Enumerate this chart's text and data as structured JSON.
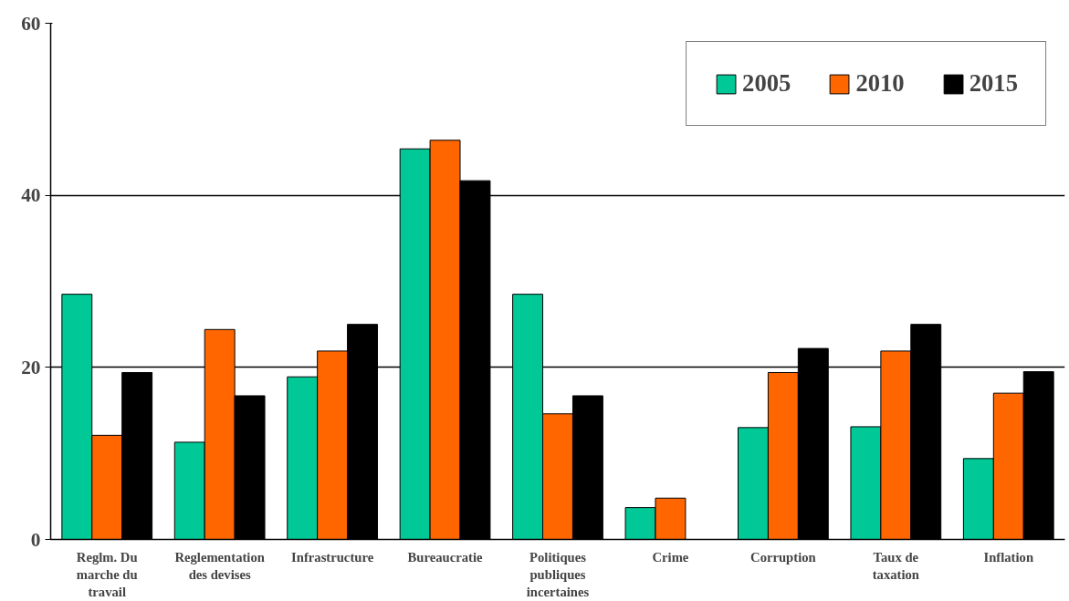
{
  "chart_data": {
    "type": "bar",
    "categories": [
      "Reglm. Du marche du travail",
      "Reglementation des devises",
      "Infrastructure",
      "Bureaucratie",
      "Politiques publiques incertaines",
      "Crime",
      "Corruption",
      "Taux de taxation",
      "Inflation"
    ],
    "series": [
      {
        "name": "2005",
        "color": "#00c896",
        "values": [
          28.5,
          11.3,
          18.9,
          45.4,
          28.5,
          3.7,
          13.0,
          13.1,
          9.4
        ]
      },
      {
        "name": "2010",
        "color": "#ff6600",
        "values": [
          12.1,
          24.4,
          21.9,
          46.4,
          14.6,
          4.8,
          19.4,
          21.9,
          17.0
        ]
      },
      {
        "name": "2015",
        "color": "#000000",
        "values": [
          19.4,
          16.7,
          25.0,
          41.7,
          16.7,
          0,
          22.2,
          25.0,
          19.5
        ]
      }
    ],
    "ylim": [
      0,
      60
    ],
    "yticks": [
      0,
      20,
      40,
      60
    ],
    "grid": "y",
    "legend": "top right"
  }
}
